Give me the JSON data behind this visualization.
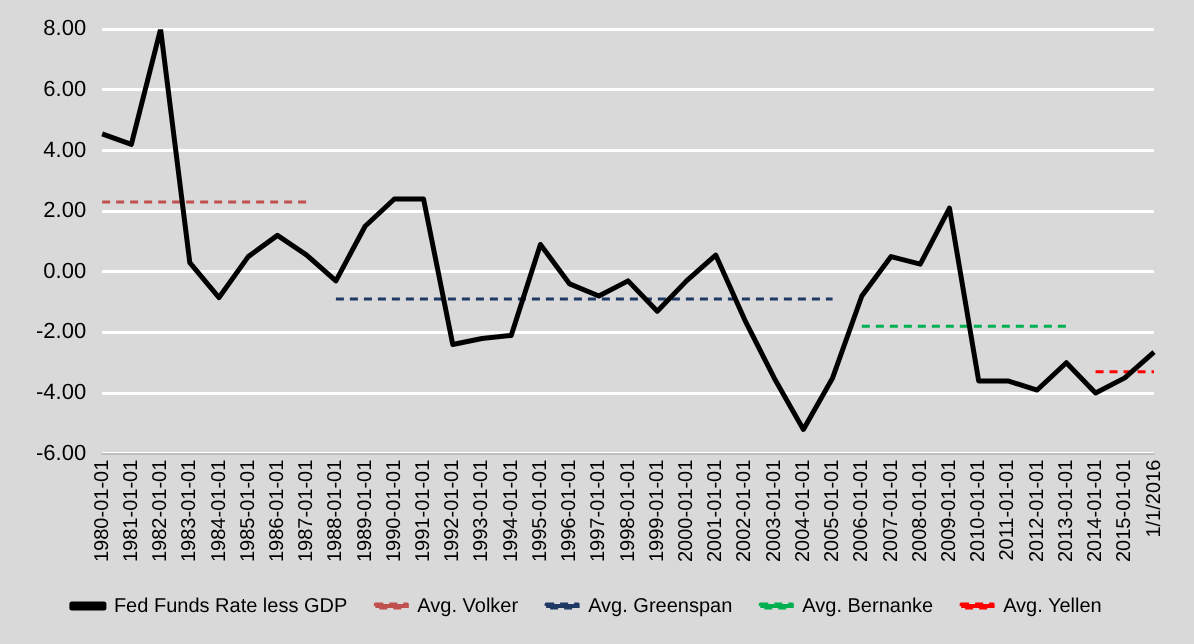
{
  "chart_data": {
    "type": "line",
    "categories": [
      "1980-01-01",
      "1981-01-01",
      "1982-01-01",
      "1983-01-01",
      "1984-01-01",
      "1985-01-01",
      "1986-01-01",
      "1987-01-01",
      "1988-01-01",
      "1989-01-01",
      "1990-01-01",
      "1991-01-01",
      "1992-01-01",
      "1993-01-01",
      "1994-01-01",
      "1995-01-01",
      "1996-01-01",
      "1997-01-01",
      "1998-01-01",
      "1999-01-01",
      "2000-01-01",
      "2001-01-01",
      "2002-01-01",
      "2003-01-01",
      "2004-01-01",
      "2005-01-01",
      "2006-01-01",
      "2007-01-01",
      "2008-01-01",
      "2009-01-01",
      "2010-01-01",
      "2011-01-01",
      "2012-01-01",
      "2013-01-01",
      "2014-01-01",
      "2015-01-01",
      "1/1/2016"
    ],
    "series": [
      {
        "name": "Fed Funds Rate less GDP",
        "color": "#000000",
        "line_style": "solid",
        "values": [
          4.55,
          4.2,
          8.0,
          0.3,
          -0.85,
          0.5,
          1.2,
          0.55,
          -0.3,
          1.5,
          2.4,
          2.4,
          -2.4,
          -2.2,
          -2.1,
          0.9,
          -0.4,
          -0.8,
          -0.3,
          -1.3,
          -0.3,
          0.55,
          -1.6,
          -3.5,
          -5.2,
          -3.5,
          -0.8,
          0.5,
          0.25,
          2.1,
          -3.6,
          -3.6,
          -3.9,
          -3.0,
          -4.0,
          -3.5,
          -2.65
        ]
      },
      {
        "name": "Avg. Volker",
        "color": "#c0504d",
        "line_style": "dashed",
        "values": [
          2.3,
          2.3,
          2.3,
          2.3,
          2.3,
          2.3,
          2.3,
          2.3,
          null,
          null,
          null,
          null,
          null,
          null,
          null,
          null,
          null,
          null,
          null,
          null,
          null,
          null,
          null,
          null,
          null,
          null,
          null,
          null,
          null,
          null,
          null,
          null,
          null,
          null,
          null,
          null,
          null
        ]
      },
      {
        "name": "Avg. Greenspan",
        "color": "#1f3864",
        "line_style": "dashed",
        "values": [
          null,
          null,
          null,
          null,
          null,
          null,
          null,
          null,
          -0.9,
          -0.9,
          -0.9,
          -0.9,
          -0.9,
          -0.9,
          -0.9,
          -0.9,
          -0.9,
          -0.9,
          -0.9,
          -0.9,
          -0.9,
          -0.9,
          -0.9,
          -0.9,
          -0.9,
          -0.9,
          null,
          null,
          null,
          null,
          null,
          null,
          null,
          null,
          null,
          null,
          null
        ]
      },
      {
        "name": "Avg. Bernanke",
        "color": "#00b050",
        "line_style": "dashed",
        "values": [
          null,
          null,
          null,
          null,
          null,
          null,
          null,
          null,
          null,
          null,
          null,
          null,
          null,
          null,
          null,
          null,
          null,
          null,
          null,
          null,
          null,
          null,
          null,
          null,
          null,
          null,
          -1.8,
          -1.8,
          -1.8,
          -1.8,
          -1.8,
          -1.8,
          -1.8,
          -1.8,
          null,
          null,
          null
        ]
      },
      {
        "name": "Avg. Yellen",
        "color": "#ff0000",
        "line_style": "dashed",
        "values": [
          null,
          null,
          null,
          null,
          null,
          null,
          null,
          null,
          null,
          null,
          null,
          null,
          null,
          null,
          null,
          null,
          null,
          null,
          null,
          null,
          null,
          null,
          null,
          null,
          null,
          null,
          null,
          null,
          null,
          null,
          null,
          null,
          null,
          null,
          -3.3,
          -3.3,
          -3.3
        ]
      }
    ],
    "ylim": [
      -6,
      8
    ],
    "yticks": [
      {
        "value": -6,
        "label": "-6.00"
      },
      {
        "value": -4,
        "label": "-4.00"
      },
      {
        "value": -2,
        "label": "-2.00"
      },
      {
        "value": 0,
        "label": "0.00"
      },
      {
        "value": 2,
        "label": "2.00"
      },
      {
        "value": 4,
        "label": "4.00"
      },
      {
        "value": 6,
        "label": "6.00"
      },
      {
        "value": 8,
        "label": "8.00"
      }
    ],
    "grid": "y",
    "legend": "bottom",
    "marker": "none"
  }
}
